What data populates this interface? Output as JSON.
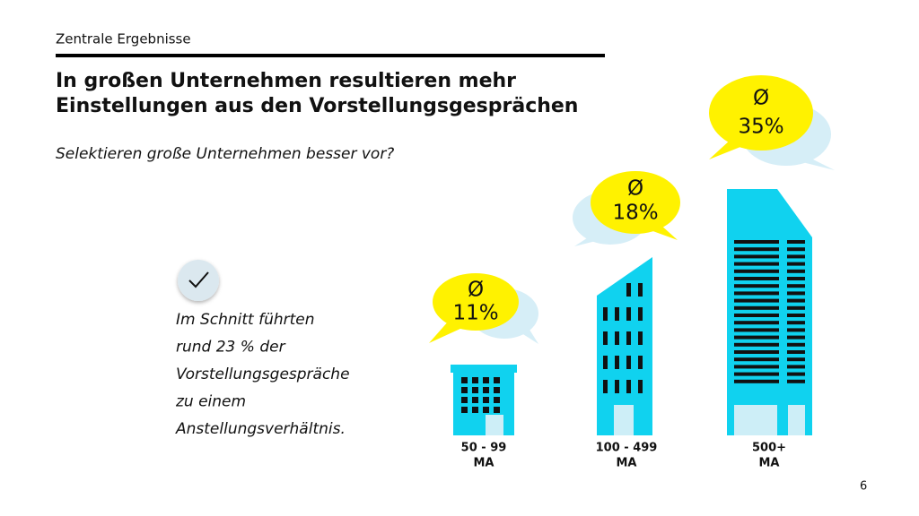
{
  "header": {
    "section": "Zentrale Ergebnisse",
    "title": [
      "In großen Unternehmen resultieren mehr",
      "Einstellungen aus den Vorstellungsgesprächen"
    ],
    "subtitle": "Selektieren große Unternehmen besser vor?"
  },
  "note": {
    "lines": [
      "Im Schnitt führten",
      "rund 23 % der",
      "Vorstellungsgespräche",
      "zu einem",
      "Anstellungsverhältnis."
    ]
  },
  "buildings": [
    {
      "label": [
        "50 - 99",
        "MA"
      ],
      "bubble": [
        "Ø",
        "11%"
      ]
    },
    {
      "label": [
        "100 - 499",
        "MA"
      ],
      "bubble": [
        "Ø",
        "18%"
      ]
    },
    {
      "label": [
        "500+",
        "MA"
      ],
      "bubble": [
        "Ø",
        "35%"
      ]
    }
  ],
  "page_number": "6"
}
